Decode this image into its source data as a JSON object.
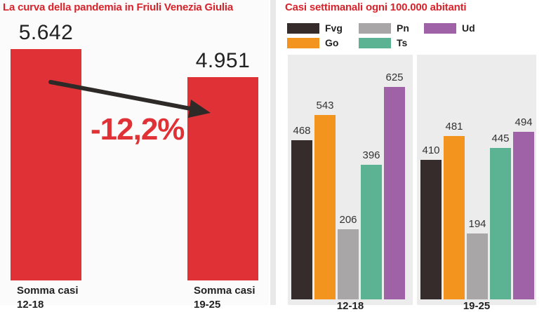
{
  "left": {
    "title": "La curva della pandemia in Friuli Venezia Giulia",
    "change_label": "-12,2%",
    "chart_data": {
      "type": "bar",
      "categories": [
        "Somma casi 12-18",
        "Somma casi 19-25"
      ],
      "values": [
        5642,
        4951
      ],
      "value_labels": [
        "5.642",
        "4.951"
      ],
      "category_line1": [
        "Somma casi",
        "Somma casi"
      ],
      "category_line2": [
        "12-18",
        "19-25"
      ],
      "ylim": [
        0,
        6500
      ]
    },
    "colors": {
      "bar": "#e03236",
      "arrow": "#2d2a28"
    }
  },
  "right": {
    "title": "Casi settimanali ogni 100.000 abitanti",
    "chart_data": {
      "type": "bar",
      "categories": [
        "12-18",
        "19-25"
      ],
      "series": [
        {
          "name": "Fvg",
          "color": "#352c2b",
          "values": [
            468,
            410
          ]
        },
        {
          "name": "Go",
          "color": "#f2941e",
          "values": [
            543,
            481
          ]
        },
        {
          "name": "Pn",
          "color": "#a8a6a6",
          "values": [
            206,
            194
          ]
        },
        {
          "name": "Ts",
          "color": "#5bb394",
          "values": [
            396,
            445
          ]
        },
        {
          "name": "Ud",
          "color": "#a062a7",
          "values": [
            625,
            494
          ]
        }
      ],
      "ylim": [
        0,
        700
      ],
      "legend_position": "top"
    }
  }
}
